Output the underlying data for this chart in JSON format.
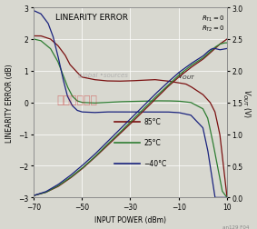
{
  "title": "LINEARITY ERROR",
  "xlabel": "INPUT POWER (dBm)",
  "ylabel_left": "LINEARITY ERROR (dB)",
  "ylabel_right": "V_{OUT} (V)",
  "xlim": [
    -70,
    10
  ],
  "ylim_left": [
    -3,
    3
  ],
  "ylim_right": [
    0,
    3.0
  ],
  "xticks": [
    -70,
    -50,
    -30,
    -10,
    10
  ],
  "yticks_left": [
    -3,
    -2,
    -1,
    0,
    1,
    2,
    3
  ],
  "yticks_right": [
    0,
    0.5,
    1.0,
    1.5,
    2.0,
    2.5,
    3.0
  ],
  "legend": [
    "85°C",
    "25°C",
    "−40°C"
  ],
  "color_85": "#7a1010",
  "color_25": "#2e7d32",
  "color_m40": "#1a237e",
  "fig_bg": "#d8d8d0",
  "note": "an129 F04",
  "lin85_x": [
    -70,
    -67,
    -63,
    -60,
    -57,
    -55,
    -52,
    -50,
    -45,
    -40,
    -35,
    -30,
    -25,
    -20,
    -15,
    -10,
    -7,
    -5,
    0,
    3,
    5,
    7,
    10
  ],
  "lin85_y": [
    2.1,
    2.1,
    2.0,
    1.8,
    1.5,
    1.2,
    0.95,
    0.8,
    0.72,
    0.68,
    0.67,
    0.68,
    0.7,
    0.72,
    0.68,
    0.62,
    0.58,
    0.5,
    0.25,
    0.0,
    -0.3,
    -1.0,
    -3.0
  ],
  "lin25_x": [
    -70,
    -67,
    -63,
    -60,
    -58,
    -56,
    -54,
    -52,
    -50,
    -45,
    -40,
    -35,
    -30,
    -25,
    -20,
    -15,
    -10,
    -5,
    0,
    2,
    4,
    6,
    8,
    10
  ],
  "lin25_y": [
    2.0,
    1.95,
    1.7,
    1.3,
    0.9,
    0.5,
    0.2,
    0.05,
    0.0,
    -0.02,
    0.0,
    0.02,
    0.03,
    0.04,
    0.05,
    0.05,
    0.04,
    0.0,
    -0.2,
    -0.5,
    -1.2,
    -2.0,
    -2.8,
    -3.0
  ],
  "linm40_x": [
    -70,
    -67,
    -64,
    -62,
    -60,
    -58,
    -56,
    -54,
    -52,
    -50,
    -45,
    -40,
    -35,
    -30,
    -25,
    -20,
    -15,
    -10,
    -5,
    0,
    2,
    4,
    5,
    7,
    10
  ],
  "linm40_y": [
    2.9,
    2.8,
    2.5,
    2.1,
    1.5,
    0.8,
    0.2,
    -0.1,
    -0.25,
    -0.3,
    -0.32,
    -0.3,
    -0.3,
    -0.3,
    -0.3,
    -0.3,
    -0.3,
    -0.32,
    -0.4,
    -0.8,
    -1.5,
    -2.5,
    -3.0,
    -3.0,
    -3.0
  ],
  "vout85_x": [
    -70,
    -65,
    -60,
    -55,
    -50,
    -45,
    -40,
    -35,
    -30,
    -25,
    -20,
    -15,
    -10,
    -5,
    0,
    3,
    5,
    7,
    10
  ],
  "vout85_y": [
    0.03,
    0.08,
    0.17,
    0.3,
    0.45,
    0.62,
    0.8,
    0.98,
    1.16,
    1.35,
    1.54,
    1.73,
    1.9,
    2.05,
    2.18,
    2.28,
    2.35,
    2.42,
    2.5
  ],
  "vout25_x": [
    -70,
    -65,
    -60,
    -55,
    -50,
    -45,
    -40,
    -35,
    -30,
    -25,
    -20,
    -15,
    -10,
    -5,
    0,
    3,
    5,
    7,
    9,
    10
  ],
  "vout25_y": [
    0.03,
    0.08,
    0.18,
    0.31,
    0.46,
    0.63,
    0.82,
    1.0,
    1.19,
    1.38,
    1.57,
    1.75,
    1.93,
    2.08,
    2.2,
    2.3,
    2.37,
    2.42,
    2.44,
    2.44
  ],
  "voutm40_x": [
    -70,
    -65,
    -60,
    -55,
    -50,
    -45,
    -40,
    -35,
    -30,
    -25,
    -20,
    -15,
    -10,
    -5,
    0,
    2,
    3,
    4,
    5,
    7,
    10
  ],
  "voutm40_y": [
    0.03,
    0.09,
    0.2,
    0.34,
    0.5,
    0.67,
    0.86,
    1.05,
    1.24,
    1.43,
    1.62,
    1.8,
    1.97,
    2.11,
    2.23,
    2.3,
    2.33,
    2.35,
    2.35,
    2.33,
    2.35
  ]
}
